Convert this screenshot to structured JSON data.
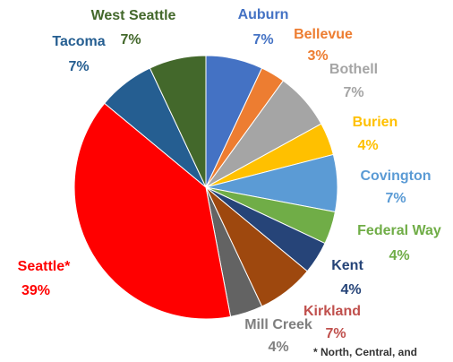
{
  "chart_data": {
    "type": "pie",
    "start_angle_deg": 0,
    "direction": "clockwise",
    "slices": [
      {
        "name": "Auburn",
        "value": 7,
        "label": "7%",
        "color": "#4472C4"
      },
      {
        "name": "Bellevue",
        "value": 3,
        "label": "3%",
        "color": "#ED7D31"
      },
      {
        "name": "Bothell",
        "value": 7,
        "label": "7%",
        "color": "#A5A5A5"
      },
      {
        "name": "Burien",
        "value": 4,
        "label": "4%",
        "color": "#FFC000"
      },
      {
        "name": "Covington",
        "value": 7,
        "label": "7%",
        "color": "#5B9BD5"
      },
      {
        "name": "Federal Way",
        "value": 4,
        "label": "4%",
        "color": "#70AD47"
      },
      {
        "name": "Kent",
        "value": 4,
        "label": "4%",
        "color": "#264478"
      },
      {
        "name": "Kirkland",
        "value": 7,
        "label": "7%",
        "color": "#9E480E"
      },
      {
        "name": "Mill Creek",
        "value": 4,
        "label": "4%",
        "color": "#636363"
      },
      {
        "name": "Seattle*",
        "value": 39,
        "label": "39%",
        "color": "#FF0000"
      },
      {
        "name": "Tacoma",
        "value": 7,
        "label": "7%",
        "color": "#255E91"
      },
      {
        "name": "West Seattle",
        "value": 7,
        "label": "7%",
        "color": "#43682B"
      }
    ],
    "footnote": "* North, Central, and"
  }
}
